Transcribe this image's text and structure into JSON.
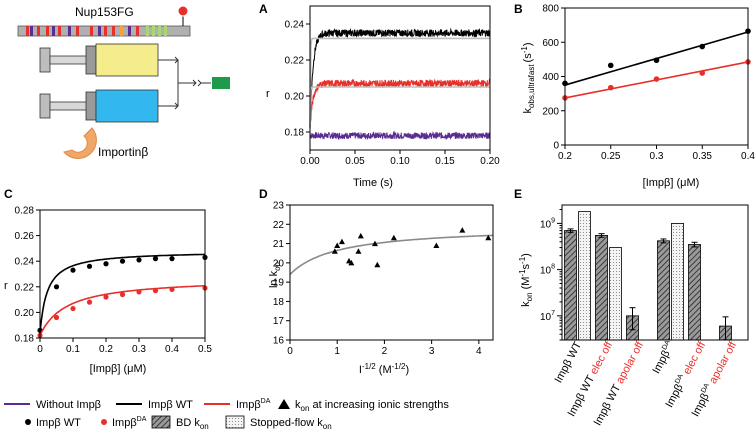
{
  "colors": {
    "black": "#000000",
    "red": "#e8302b",
    "purple": "#5b2d90",
    "gray": "#8a8a8a",
    "yellow": "#f5ec8c",
    "cyan": "#32b8ee",
    "green": "#1d9a4a",
    "importin": "#f0a868",
    "orange": "#f6a23a",
    "lightgreen": "#a8d870"
  },
  "schematic": {
    "label": "Nup153FG",
    "importin_label": "Importinβ"
  },
  "chart_data": [
    {
      "panel": "A",
      "type": "line",
      "xlabel": "Time (s)",
      "ylabel": "r",
      "xlim": [
        0,
        0.2
      ],
      "ylim": [
        0.17,
        0.25
      ],
      "xticks": [
        "0.00",
        "0.05",
        "0.10",
        "0.15",
        "0.20"
      ],
      "yticks": [
        "0.18",
        "0.20",
        "0.22",
        "0.24"
      ],
      "series": [
        {
          "name": "Without Impβ",
          "color": "purple",
          "baseline": 0.178,
          "plateau": 0.178,
          "noise": 0.0018
        },
        {
          "name": "Impβ WT",
          "color": "black",
          "baseline": 0.182,
          "plateau": 0.235,
          "rate": 300,
          "noise": 0.002
        },
        {
          "name": "ImpβDA",
          "color": "red",
          "baseline": 0.182,
          "plateau": 0.207,
          "rate": 300,
          "noise": 0.002
        }
      ],
      "fits": [
        {
          "color": "gray",
          "plateau": 0.232,
          "rate": 90
        },
        {
          "color": "gray",
          "plateau": 0.205,
          "rate": 90
        }
      ]
    },
    {
      "panel": "B",
      "type": "scatter",
      "xlabel": "[Impβ] (μM)",
      "ylabel_main": "k",
      "ylabel_sub": "obs,ultrafast",
      "ylabel_unit": "(s",
      "ylabel_exp": "-1",
      "ylabel_close": ")",
      "xlim": [
        0.2,
        0.4
      ],
      "ylim": [
        0,
        800
      ],
      "xticks": [
        "0.2",
        "0.25",
        "0.3",
        "0.35",
        "0.4"
      ],
      "yticks": [
        "0",
        "200",
        "400",
        "600",
        "800"
      ],
      "series": [
        {
          "name": "Impβ WT",
          "color": "black",
          "x": [
            0.2,
            0.25,
            0.3,
            0.35,
            0.4
          ],
          "y": [
            360,
            465,
            495,
            575,
            665
          ],
          "fit": [
            350,
            660
          ]
        },
        {
          "name": "ImpβDA",
          "color": "red",
          "x": [
            0.2,
            0.25,
            0.3,
            0.35,
            0.4
          ],
          "y": [
            275,
            335,
            385,
            420,
            485
          ],
          "fit": [
            275,
            485
          ]
        }
      ]
    },
    {
      "panel": "C",
      "type": "scatter",
      "xlabel": "[Impβ] (μM)",
      "ylabel": "r",
      "xlim": [
        0,
        0.5
      ],
      "ylim": [
        0.18,
        0.28
      ],
      "xticks": [
        "0",
        "0.1",
        "0.2",
        "0.3",
        "0.4",
        "0.5"
      ],
      "yticks": [
        "0.18",
        "0.20",
        "0.22",
        "0.24",
        "0.26",
        "0.28"
      ],
      "series": [
        {
          "name": "Impβ WT",
          "color": "black",
          "x": [
            0,
            0.05,
            0.1,
            0.15,
            0.2,
            0.25,
            0.3,
            0.35,
            0.4,
            0.5
          ],
          "y": [
            0.186,
            0.22,
            0.233,
            0.236,
            0.238,
            0.24,
            0.241,
            0.242,
            0.242,
            0.243
          ],
          "fit": {
            "r0": 0.184,
            "a": 0.064,
            "k": 0.022
          }
        },
        {
          "name": "ImpβDA",
          "color": "red",
          "x": [
            0,
            0.05,
            0.1,
            0.15,
            0.2,
            0.25,
            0.3,
            0.35,
            0.4,
            0.5
          ],
          "y": [
            0.182,
            0.196,
            0.203,
            0.208,
            0.212,
            0.214,
            0.216,
            0.217,
            0.218,
            0.219
          ],
          "fit": {
            "r0": 0.182,
            "a": 0.045,
            "k": 0.08
          }
        }
      ]
    },
    {
      "panel": "D",
      "type": "scatter",
      "xlabel_main": "I",
      "xlabel_exp": "-1/2",
      "xlabel_unit": " (M",
      "xlabel_unit_exp": "-1/2",
      "xlabel_close": ")",
      "ylabel_main": "ln k",
      "ylabel_sub": "on",
      "xlim": [
        0,
        4.3
      ],
      "ylim": [
        16,
        23
      ],
      "xticks": [
        "0",
        "1",
        "2",
        "3",
        "4"
      ],
      "yticks": [
        "16",
        "17",
        "18",
        "19",
        "20",
        "21",
        "22",
        "23"
      ],
      "points": {
        "x": [
          0.95,
          1.0,
          1.1,
          1.25,
          1.3,
          1.45,
          1.5,
          1.8,
          1.85,
          2.2,
          3.1,
          3.65,
          4.2
        ],
        "y": [
          20.6,
          20.9,
          21.1,
          20.1,
          20.0,
          20.6,
          21.4,
          21.0,
          19.9,
          21.3,
          20.9,
          21.7,
          21.3
        ]
      },
      "fit": {
        "a": 21.9,
        "b": 2.5,
        "c": 1.8,
        "color": "gray"
      }
    },
    {
      "panel": "E",
      "type": "bar",
      "ylabel_main": "k",
      "ylabel_sub": "on",
      "ylabel_unit": " (M",
      "ylabel_exp": "-1",
      "ylabel_unit2": "s",
      "ylabel_exp2": "-1",
      "ylabel_close": ")",
      "yscale": "log",
      "ylim": [
        3000000,
        2500000000
      ],
      "yticks": [
        {
          "base": "10",
          "exp": "7",
          "v": 10000000
        },
        {
          "base": "10",
          "exp": "8",
          "v": 100000000
        },
        {
          "base": "10",
          "exp": "9",
          "v": 1000000000
        }
      ],
      "categories": [
        {
          "main": "Impβ WT",
          "suffix": "",
          "suffix_sup": "",
          "red": ""
        },
        {
          "main": "Impβ WT ",
          "suffix": "",
          "suffix_sup": "",
          "red": "elec off"
        },
        {
          "main": "Impβ WT ",
          "suffix": "",
          "suffix_sup": "",
          "red": "apolar off"
        },
        {
          "main": "Impβ",
          "suffix": "",
          "suffix_sup": "DA",
          "red": ""
        },
        {
          "main": "Impβ",
          "suffix": "",
          "suffix_sup": "DA",
          "red": " elec off"
        },
        {
          "main": "Impβ",
          "suffix": "",
          "suffix_sup": "DA",
          "red": " apolar off"
        }
      ],
      "bars": [
        {
          "cat": 0,
          "kind": "BD",
          "value": 700000000,
          "err": 60000000
        },
        {
          "cat": 0,
          "kind": "SF",
          "value": 1800000000,
          "err": 0
        },
        {
          "cat": 1,
          "kind": "BD",
          "value": 550000000,
          "err": 50000000
        },
        {
          "cat": 1,
          "kind": "SF",
          "value": 300000000,
          "err": 0
        },
        {
          "cat": 2,
          "kind": "BD",
          "value": 10000000,
          "err": 5000000
        },
        {
          "cat": 3,
          "kind": "BD",
          "value": 420000000,
          "err": 40000000
        },
        {
          "cat": 3,
          "kind": "SF",
          "value": 1000000000,
          "err": 0
        },
        {
          "cat": 4,
          "kind": "BD",
          "value": 350000000,
          "err": 40000000
        },
        {
          "cat": 5,
          "kind": "BD",
          "value": 6000000,
          "err": 3500000
        }
      ]
    }
  ],
  "legend": {
    "without": "Without Impβ",
    "wt": "Impβ WT",
    "da_main": "Impβ",
    "da_sup": "DA",
    "kon_main": "k",
    "kon_sub": "on",
    "kon_rest": " at increasing ionic strengths",
    "dot_wt": "Impβ WT",
    "dot_da_main": "Impβ",
    "dot_da_sup": "DA",
    "bd_main": "BD k",
    "bd_sub": "on",
    "sf_main": "Stopped-flow k",
    "sf_sub": "on"
  }
}
